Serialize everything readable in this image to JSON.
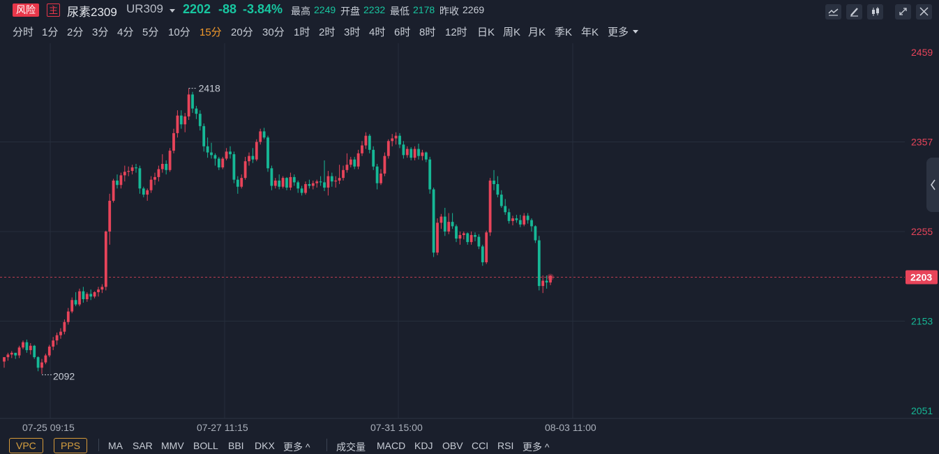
{
  "header": {
    "risk_badge": "风险",
    "main_badge": "主",
    "name": "尿素2309",
    "code": "UR309",
    "price": "2202",
    "change": "-88",
    "change_pct": "-3.84%",
    "high_label": "最高",
    "high": "2249",
    "open_label": "开盘",
    "open": "2232",
    "low_label": "最低",
    "low": "2178",
    "prev_label": "昨收",
    "prev": "2269",
    "tools": [
      "indicator-icon",
      "draw-pen-icon",
      "candle-style-icon",
      "fullscreen-icon",
      "close-icon"
    ]
  },
  "timeframes": [
    "分时",
    "1分",
    "2分",
    "3分",
    "4分",
    "5分",
    "10分",
    "15分",
    "20分",
    "30分",
    "1时",
    "2时",
    "3时",
    "4时",
    "6时",
    "8时",
    "12时",
    "日K",
    "周K",
    "月K",
    "季K",
    "年K",
    "更多"
  ],
  "active_timeframe": "15分",
  "footer": {
    "boxed": [
      "VPC",
      "PPS"
    ],
    "main_indicators": [
      "MA",
      "SAR",
      "MMV",
      "BOLL",
      "BBI",
      "DKX",
      "更多 ^"
    ],
    "sub_indicators": [
      "成交量",
      "MACD",
      "KDJ",
      "OBV",
      "CCI",
      "RSI",
      "更多 ^"
    ]
  },
  "colors": {
    "up": "#e8445a",
    "down": "#16b896",
    "background": "#1a1f2c",
    "grid": "#262e3c",
    "last_price": "#e8445a",
    "active_tab": "#f39a2b"
  },
  "chart_data": {
    "type": "candlestick",
    "ylim": [
      2051,
      2459
    ],
    "yticks": [
      2051,
      2153,
      2255,
      2357,
      2459
    ],
    "xticks": [
      "07-25 09:15",
      "07-27 11:15",
      "07-31 15:00",
      "08-03 11:00"
    ],
    "last_price": 2203,
    "max_marker": 2418,
    "min_marker": 2092,
    "candles": [
      [
        2107,
        2112,
        2100,
        2112
      ],
      [
        2112,
        2117,
        2108,
        2115
      ],
      [
        2115,
        2119,
        2111,
        2117
      ],
      [
        2117,
        2116,
        2110,
        2114
      ],
      [
        2114,
        2125,
        2111,
        2123
      ],
      [
        2123,
        2131,
        2121,
        2129
      ],
      [
        2129,
        2132,
        2117,
        2120
      ],
      [
        2120,
        2128,
        2115,
        2125
      ],
      [
        2125,
        2126,
        2110,
        2112
      ],
      [
        2112,
        2113,
        2096,
        2100
      ],
      [
        2100,
        2110,
        2093,
        2106
      ],
      [
        2106,
        2116,
        2104,
        2114
      ],
      [
        2114,
        2126,
        2112,
        2124
      ],
      [
        2124,
        2135,
        2120,
        2131
      ],
      [
        2131,
        2140,
        2126,
        2137
      ],
      [
        2137,
        2145,
        2133,
        2141
      ],
      [
        2141,
        2155,
        2138,
        2152
      ],
      [
        2152,
        2168,
        2149,
        2164
      ],
      [
        2164,
        2180,
        2162,
        2177
      ],
      [
        2177,
        2186,
        2170,
        2172
      ],
      [
        2172,
        2190,
        2170,
        2187
      ],
      [
        2187,
        2192,
        2174,
        2178
      ],
      [
        2178,
        2186,
        2175,
        2184
      ],
      [
        2184,
        2189,
        2177,
        2181
      ],
      [
        2181,
        2187,
        2179,
        2186
      ],
      [
        2186,
        2192,
        2181,
        2189
      ],
      [
        2189,
        2195,
        2185,
        2192
      ],
      [
        2192,
        2256,
        2188,
        2255
      ],
      [
        2255,
        2298,
        2240,
        2290
      ],
      [
        2290,
        2315,
        2288,
        2313
      ],
      [
        2313,
        2320,
        2304,
        2308
      ],
      [
        2308,
        2322,
        2304,
        2319
      ],
      [
        2319,
        2330,
        2312,
        2323
      ],
      [
        2323,
        2329,
        2318,
        2324
      ],
      [
        2324,
        2331,
        2320,
        2328
      ],
      [
        2328,
        2332,
        2322,
        2327
      ],
      [
        2327,
        2330,
        2298,
        2304
      ],
      [
        2304,
        2306,
        2294,
        2297
      ],
      [
        2297,
        2304,
        2290,
        2302
      ],
      [
        2302,
        2318,
        2299,
        2314
      ],
      [
        2314,
        2322,
        2308,
        2317
      ],
      [
        2317,
        2330,
        2312,
        2326
      ],
      [
        2326,
        2343,
        2322,
        2332
      ],
      [
        2332,
        2336,
        2320,
        2325
      ],
      [
        2325,
        2350,
        2323,
        2347
      ],
      [
        2347,
        2372,
        2344,
        2367
      ],
      [
        2367,
        2393,
        2362,
        2387
      ],
      [
        2387,
        2393,
        2372,
        2377
      ],
      [
        2377,
        2390,
        2368,
        2386
      ],
      [
        2386,
        2418,
        2382,
        2411
      ],
      [
        2411,
        2414,
        2390,
        2395
      ],
      [
        2395,
        2398,
        2383,
        2389
      ],
      [
        2389,
        2393,
        2370,
        2375
      ],
      [
        2375,
        2378,
        2346,
        2352
      ],
      [
        2352,
        2362,
        2339,
        2345
      ],
      [
        2345,
        2356,
        2338,
        2342
      ],
      [
        2342,
        2344,
        2330,
        2338
      ],
      [
        2338,
        2340,
        2325,
        2328
      ],
      [
        2328,
        2340,
        2326,
        2338
      ],
      [
        2338,
        2350,
        2336,
        2346
      ],
      [
        2346,
        2352,
        2338,
        2343
      ],
      [
        2343,
        2346,
        2310,
        2314
      ],
      [
        2314,
        2318,
        2298,
        2306
      ],
      [
        2306,
        2320,
        2304,
        2316
      ],
      [
        2316,
        2340,
        2314,
        2335
      ],
      [
        2335,
        2345,
        2330,
        2341
      ],
      [
        2341,
        2350,
        2333,
        2337
      ],
      [
        2337,
        2360,
        2335,
        2357
      ],
      [
        2357,
        2372,
        2354,
        2369
      ],
      [
        2369,
        2373,
        2360,
        2362
      ],
      [
        2362,
        2364,
        2323,
        2327
      ],
      [
        2327,
        2330,
        2302,
        2307
      ],
      [
        2307,
        2316,
        2304,
        2313
      ],
      [
        2313,
        2320,
        2303,
        2306
      ],
      [
        2306,
        2318,
        2304,
        2316
      ],
      [
        2316,
        2317,
        2302,
        2305
      ],
      [
        2305,
        2322,
        2302,
        2317
      ],
      [
        2317,
        2320,
        2307,
        2311
      ],
      [
        2311,
        2313,
        2299,
        2304
      ],
      [
        2304,
        2307,
        2296,
        2299
      ],
      [
        2299,
        2312,
        2297,
        2309
      ],
      [
        2309,
        2314,
        2304,
        2307
      ],
      [
        2307,
        2313,
        2303,
        2310
      ],
      [
        2310,
        2314,
        2305,
        2312
      ],
      [
        2312,
        2318,
        2307,
        2311
      ],
      [
        2311,
        2336,
        2301,
        2305
      ],
      [
        2305,
        2324,
        2296,
        2318
      ],
      [
        2318,
        2322,
        2306,
        2312
      ],
      [
        2312,
        2318,
        2305,
        2313
      ],
      [
        2313,
        2331,
        2309,
        2316
      ],
      [
        2316,
        2330,
        2313,
        2325
      ],
      [
        2325,
        2344,
        2322,
        2331
      ],
      [
        2331,
        2340,
        2328,
        2337
      ],
      [
        2337,
        2340,
        2326,
        2329
      ],
      [
        2329,
        2348,
        2326,
        2344
      ],
      [
        2344,
        2358,
        2341,
        2353
      ],
      [
        2353,
        2368,
        2349,
        2364
      ],
      [
        2364,
        2366,
        2344,
        2348
      ],
      [
        2348,
        2352,
        2325,
        2329
      ],
      [
        2329,
        2332,
        2303,
        2310
      ],
      [
        2310,
        2326,
        2308,
        2321
      ],
      [
        2321,
        2345,
        2318,
        2341
      ],
      [
        2341,
        2360,
        2338,
        2358
      ],
      [
        2358,
        2366,
        2352,
        2361
      ],
      [
        2361,
        2368,
        2354,
        2364
      ],
      [
        2364,
        2367,
        2350,
        2354
      ],
      [
        2354,
        2358,
        2338,
        2342
      ],
      [
        2342,
        2352,
        2339,
        2349
      ],
      [
        2349,
        2351,
        2336,
        2339
      ],
      [
        2339,
        2352,
        2336,
        2349
      ],
      [
        2349,
        2355,
        2337,
        2341
      ],
      [
        2341,
        2348,
        2336,
        2345
      ],
      [
        2345,
        2346,
        2334,
        2337
      ],
      [
        2337,
        2340,
        2298,
        2303
      ],
      [
        2303,
        2305,
        2226,
        2231
      ],
      [
        2231,
        2270,
        2228,
        2265
      ],
      [
        2265,
        2275,
        2258,
        2272
      ],
      [
        2272,
        2282,
        2250,
        2255
      ],
      [
        2255,
        2276,
        2252,
        2266
      ],
      [
        2266,
        2276,
        2258,
        2261
      ],
      [
        2261,
        2263,
        2243,
        2247
      ],
      [
        2247,
        2255,
        2240,
        2251
      ],
      [
        2251,
        2255,
        2246,
        2253
      ],
      [
        2253,
        2254,
        2240,
        2243
      ],
      [
        2243,
        2255,
        2240,
        2251
      ],
      [
        2251,
        2254,
        2244,
        2249
      ],
      [
        2249,
        2252,
        2235,
        2238
      ],
      [
        2238,
        2240,
        2216,
        2220
      ],
      [
        2220,
        2256,
        2218,
        2254
      ],
      [
        2254,
        2316,
        2250,
        2313
      ],
      [
        2313,
        2325,
        2302,
        2309
      ],
      [
        2309,
        2318,
        2294,
        2297
      ],
      [
        2297,
        2302,
        2282,
        2284
      ],
      [
        2284,
        2292,
        2274,
        2277
      ],
      [
        2277,
        2281,
        2264,
        2267
      ],
      [
        2267,
        2273,
        2262,
        2270
      ],
      [
        2270,
        2274,
        2265,
        2268
      ],
      [
        2268,
        2274,
        2260,
        2263
      ],
      [
        2263,
        2276,
        2261,
        2273
      ],
      [
        2273,
        2276,
        2264,
        2268
      ],
      [
        2268,
        2270,
        2255,
        2261
      ],
      [
        2261,
        2262,
        2242,
        2245
      ],
      [
        2245,
        2250,
        2188,
        2193
      ],
      [
        2193,
        2205,
        2185,
        2199
      ],
      [
        2199,
        2205,
        2190,
        2197
      ],
      [
        2197,
        2205,
        2194,
        2202
      ]
    ]
  }
}
